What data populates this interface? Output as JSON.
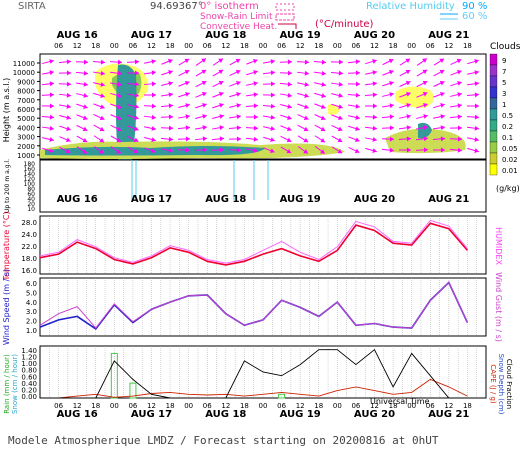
{
  "header": {
    "station": "SIRTA",
    "coords": "94.69367°",
    "isotherm_label": "0° isotherm",
    "snowrain_label": "Snow-Rain Limit",
    "convective_label": "Convective Heat.",
    "convective_unit": "(°C/minute)",
    "rh_label": "Relative Humidity",
    "rh_90": "90 %",
    "rh_60": "60 %"
  },
  "axes": {
    "day_labels": [
      "AUG 16",
      "AUG 17",
      "AUG 18",
      "AUG 19",
      "AUG 20",
      "AUG 21"
    ],
    "hour_ticks": [
      "06",
      "12",
      "18",
      "00",
      "06",
      "12",
      "18",
      "00",
      "06",
      "12",
      "18",
      "00",
      "06",
      "12",
      "18",
      "00",
      "06",
      "12",
      "18",
      "00",
      "06",
      "12",
      "18"
    ],
    "height_label": "Height  (m a.s.l.)",
    "height_ticks": [
      "11000",
      "10000",
      "9000",
      "8000",
      "7000",
      "6000",
      "5000",
      "4000",
      "3000",
      "2000",
      "1000"
    ],
    "low_label": "Up to 200 m a.g.l.",
    "low_ticks": [
      "180",
      "160",
      "140",
      "120",
      "100",
      "80",
      "60",
      "40",
      "20",
      "10"
    ],
    "temp_label": "Temperature (°C)",
    "temp_ticks": [
      "28.0",
      "24.0",
      "22.0",
      "18.0",
      "16.0"
    ],
    "humidex_label": "HUMIDEX",
    "wind_label": "Wind Speed (m / s)",
    "windgust_label": "Wind Gust (m / s)",
    "wind_ticks": [
      "6.0",
      "5.0",
      "4.0",
      "3.0",
      "2.0",
      "1.0"
    ],
    "rain_label": "Rain (mm / hour)",
    "snow_label": "Snow (cm / hour)",
    "precip_ticks": [
      "1.40",
      "1.20",
      "1.00",
      "0.80",
      "0.60",
      "0.40",
      "0.20",
      "0.00"
    ],
    "cape_label": "CAPE (J / g)",
    "snowdepth_label": "Snow Depth (cm)",
    "cloudfrac_label": "Cloud Fraction",
    "utc_label": "Universal Time"
  },
  "cloud_legend": {
    "title": "Clouds",
    "unit": "(g/kg)",
    "levels": [
      "9",
      "7",
      "5",
      "3",
      "1",
      "0.5",
      "0.2",
      "0.1",
      "0.05",
      "0.02",
      "0.01"
    ],
    "colors": [
      "#cc00cc",
      "#9933cc",
      "#6633cc",
      "#3333cc",
      "#336699",
      "#339999",
      "#33aa88",
      "#55bb66",
      "#99cc44",
      "#cccc33",
      "#ffff00"
    ]
  },
  "footer": "Modele Atmospherique LMDZ / Forecast starting on 20200816 at 0hUT",
  "colors": {
    "temperature": "#ee0033",
    "humidex": "#ff66ff",
    "wind": "#2222cc",
    "windgust": "#cc44cc",
    "rain": "#44cc44",
    "cape": "#cc2200",
    "cloudfrac": "#000000",
    "arrows": "#ff00ff",
    "rh90": "#00aaff",
    "rh60": "#66ccff"
  },
  "chart_data": [
    {
      "type": "line",
      "panel": "temperature",
      "xlabel": "Universal Time",
      "ylabel": "Temperature (°C)",
      "x_hours": [
        0,
        6,
        12,
        18,
        24,
        30,
        36,
        42,
        48,
        54,
        60,
        66,
        72,
        78,
        84,
        90,
        96,
        102,
        108,
        114,
        120,
        126,
        132,
        138
      ],
      "series": [
        {
          "name": "Temperature (°C)",
          "values": [
            18.5,
            19.5,
            22.8,
            21.0,
            18.0,
            16.8,
            18.5,
            21.2,
            20.0,
            17.5,
            16.5,
            17.5,
            19.5,
            21.0,
            19.0,
            17.5,
            20.5,
            27.5,
            26.0,
            22.5,
            22.0,
            28.0,
            26.5,
            20.5
          ]
        },
        {
          "name": "HUMIDEX",
          "values": [
            19.0,
            20.0,
            23.5,
            21.5,
            18.5,
            17.2,
            19.0,
            21.8,
            20.5,
            18.0,
            17.0,
            18.0,
            20.5,
            23.0,
            20.0,
            18.0,
            21.5,
            28.5,
            27.0,
            23.0,
            22.5,
            28.8,
            27.2,
            21.0
          ]
        }
      ],
      "ylim": [
        14,
        30
      ]
    },
    {
      "type": "line",
      "panel": "wind",
      "ylabel": "Wind Speed (m / s)",
      "x_hours": [
        0,
        6,
        12,
        18,
        24,
        30,
        36,
        42,
        48,
        54,
        60,
        66,
        72,
        78,
        84,
        90,
        96,
        102,
        108,
        114,
        120,
        126,
        132,
        138
      ],
      "series": [
        {
          "name": "Wind Speed (m / s)",
          "values": [
            1.0,
            1.8,
            2.2,
            0.8,
            3.5,
            1.5,
            3.0,
            3.8,
            4.5,
            4.6,
            2.5,
            1.2,
            1.8,
            4.0,
            3.2,
            2.2,
            3.8,
            1.2,
            1.4,
            1.0,
            0.9,
            4.0,
            6.0,
            1.5
          ]
        },
        {
          "name": "Wind Gust (m / s)",
          "values": [
            1.2,
            2.5,
            3.3,
            0.9,
            3.6,
            1.6,
            3.0,
            3.8,
            4.5,
            4.6,
            2.5,
            1.2,
            1.8,
            4.0,
            3.2,
            2.2,
            3.8,
            1.2,
            1.4,
            1.0,
            0.9,
            4.0,
            6.0,
            1.5
          ]
        }
      ],
      "ylim": [
        0,
        6.5
      ]
    },
    {
      "type": "line",
      "panel": "precipitation",
      "ylabel": "Rain (mm / hour)",
      "x_hours": [
        0,
        6,
        12,
        18,
        24,
        30,
        36,
        42,
        48,
        54,
        60,
        66,
        72,
        78,
        84,
        90,
        96,
        102,
        108,
        114,
        120,
        126,
        132,
        138
      ],
      "series": [
        {
          "name": "Rain (mm / hour)",
          "values": [
            0,
            0,
            0,
            0,
            1.2,
            0.4,
            0,
            0,
            0,
            0,
            0,
            0,
            0,
            0.1,
            0,
            0,
            0,
            0,
            0,
            0,
            0,
            0,
            0,
            0
          ]
        },
        {
          "name": "CAPE (J / g)",
          "values": [
            0,
            0,
            0.05,
            0.1,
            0.02,
            0.05,
            0.12,
            0.15,
            0.1,
            0.08,
            0.1,
            0.05,
            0.1,
            0.15,
            0.1,
            0.05,
            0.2,
            0.3,
            0.2,
            0.1,
            0.15,
            0.5,
            0.3,
            0.05
          ]
        },
        {
          "name": "Cloud Fraction",
          "values": [
            0,
            0,
            0,
            0,
            1.0,
            0.5,
            0.1,
            0,
            0,
            0,
            0,
            1.0,
            0.7,
            0.6,
            0.9,
            1.3,
            1.3,
            0.9,
            1.3,
            0.3,
            1.2,
            0.6,
            0,
            0
          ]
        }
      ],
      "ylim": [
        0,
        1.4
      ]
    }
  ]
}
